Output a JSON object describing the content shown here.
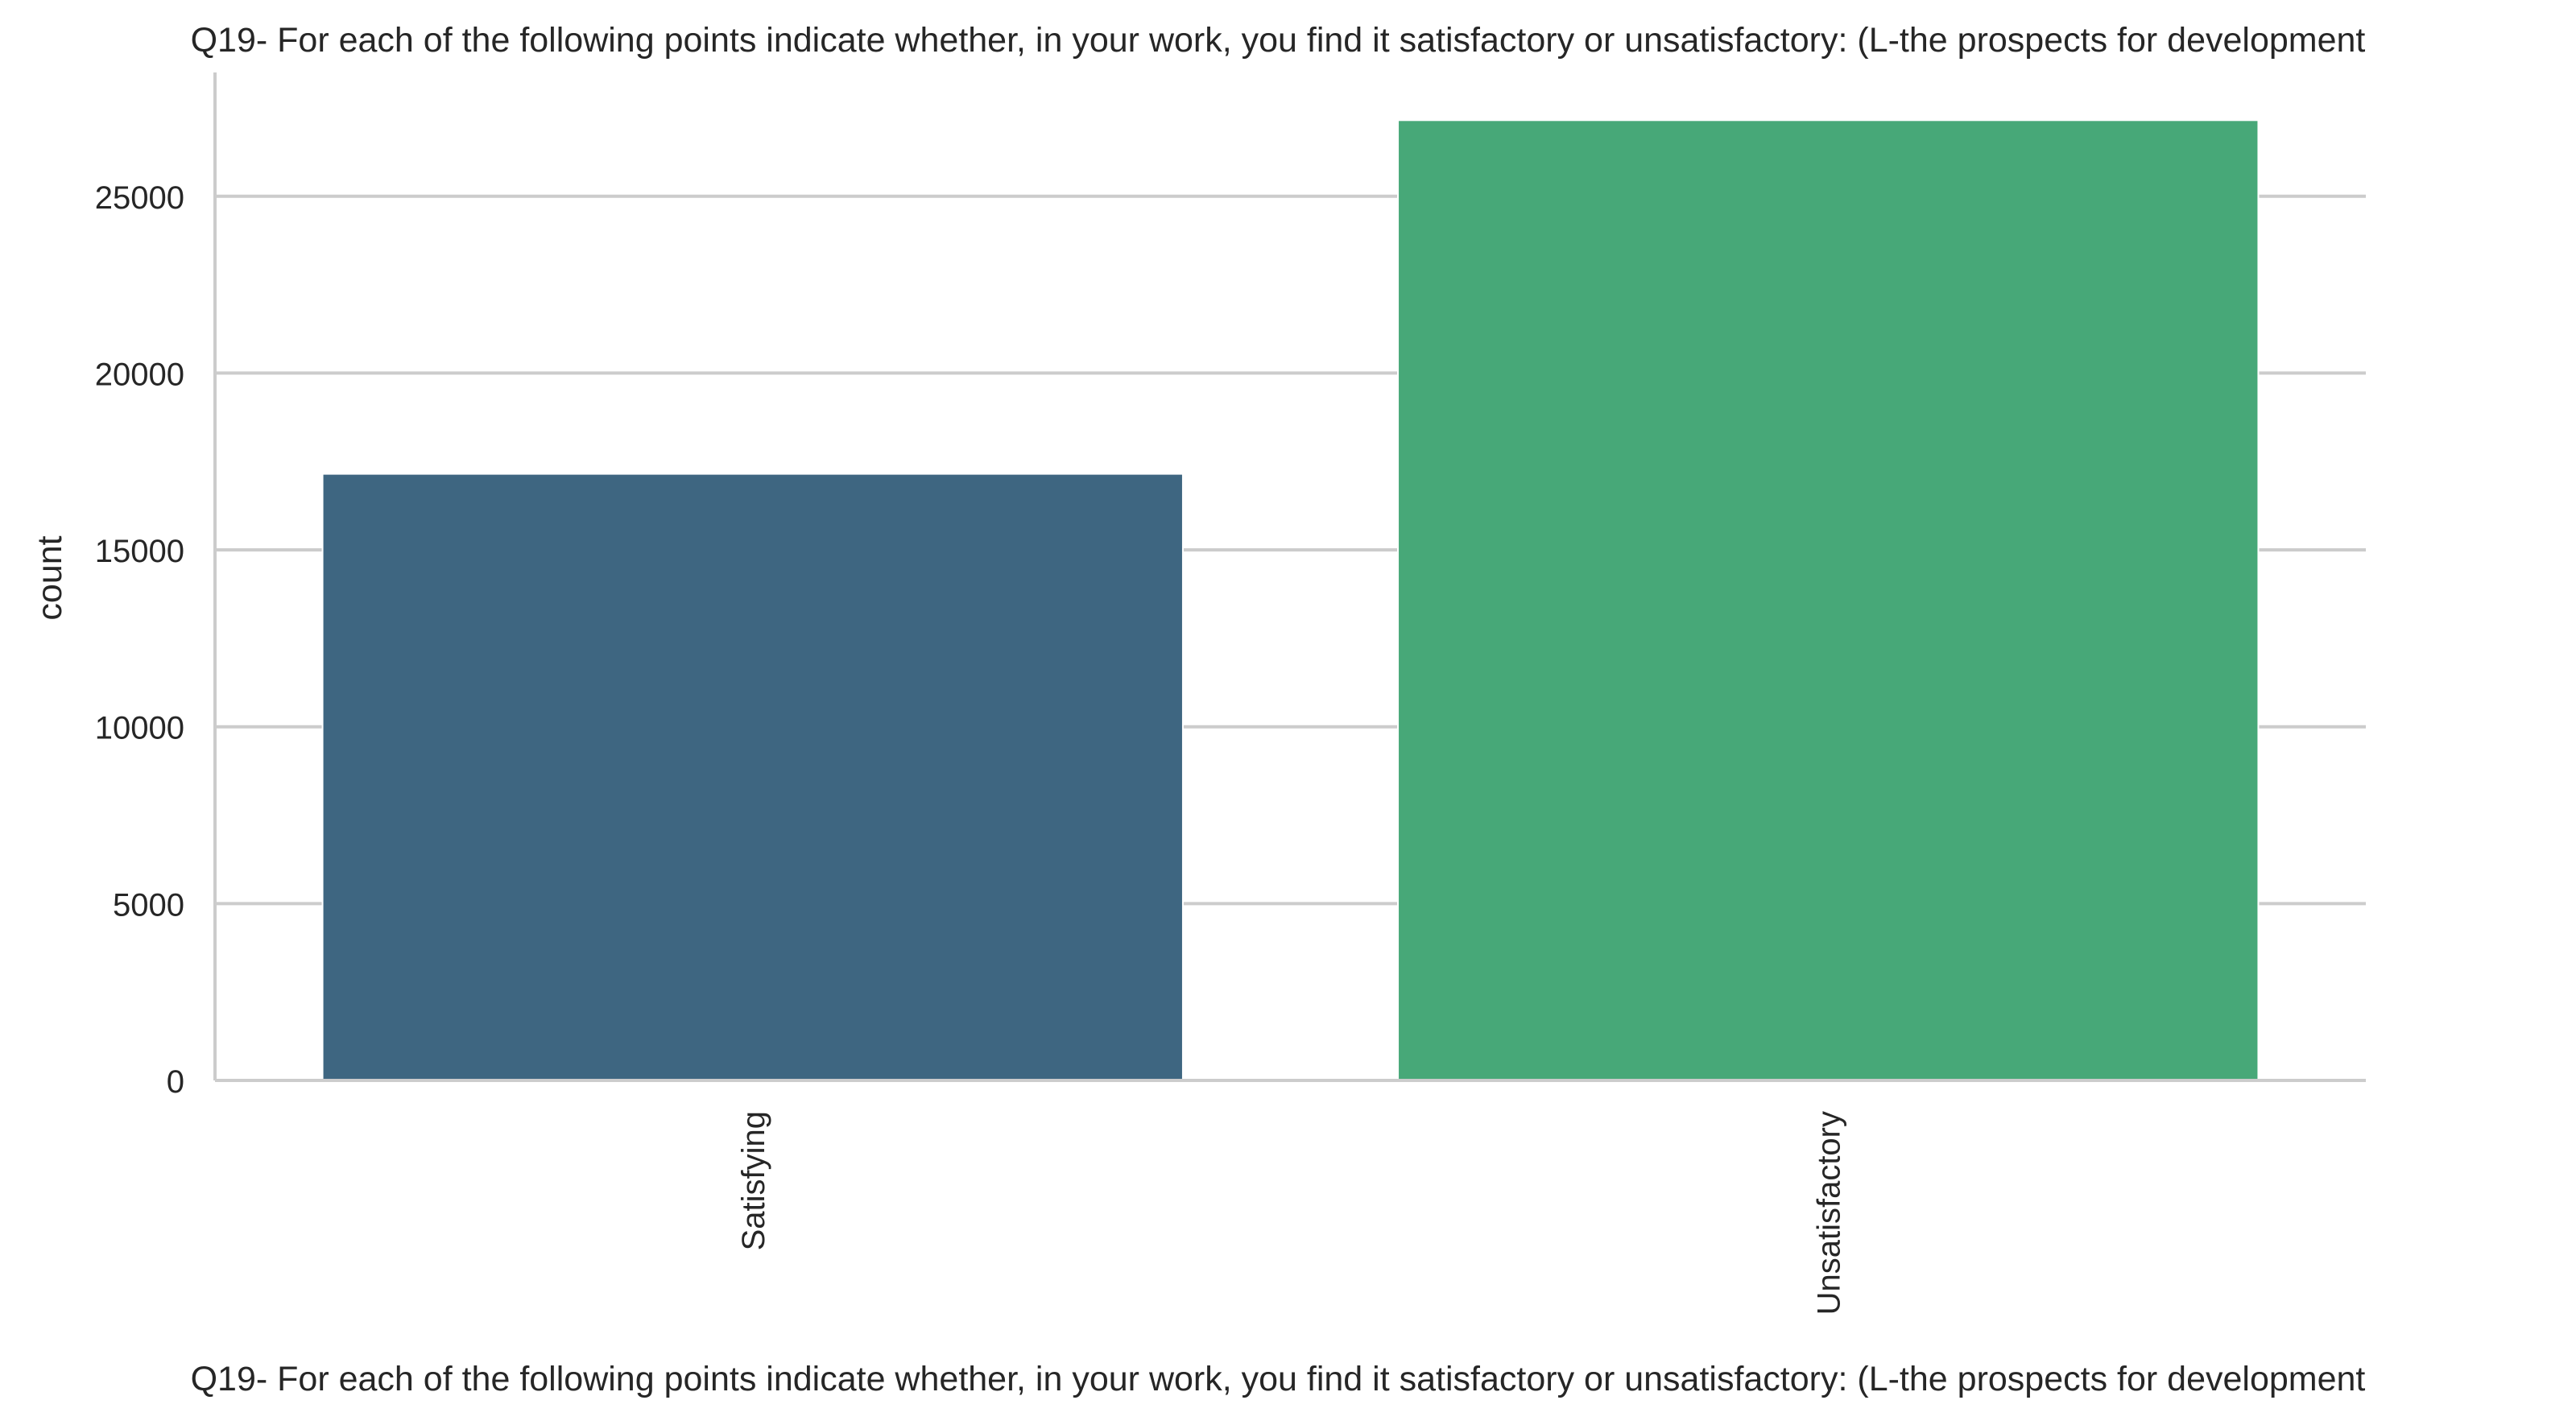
{
  "chart_data": {
    "type": "bar",
    "title": "Q19- For each of the following points indicate whether, in your work, you find it satisfactory or unsatisfactory: (L-the prospects for development",
    "xlabel": "Q19- For each of the following points indicate whether, in your work, you find it satisfactory or unsatisfactory: (L-the prospects for development",
    "ylabel": "count",
    "categories": [
      "Satisfying",
      "Unsatisfactory"
    ],
    "values": [
      17150,
      27150
    ],
    "colors": [
      "#3e6681",
      "#47a878"
    ],
    "ylim": [
      0,
      28500
    ],
    "yticks": [
      0,
      5000,
      10000,
      15000,
      20000,
      25000
    ],
    "grid": true
  }
}
